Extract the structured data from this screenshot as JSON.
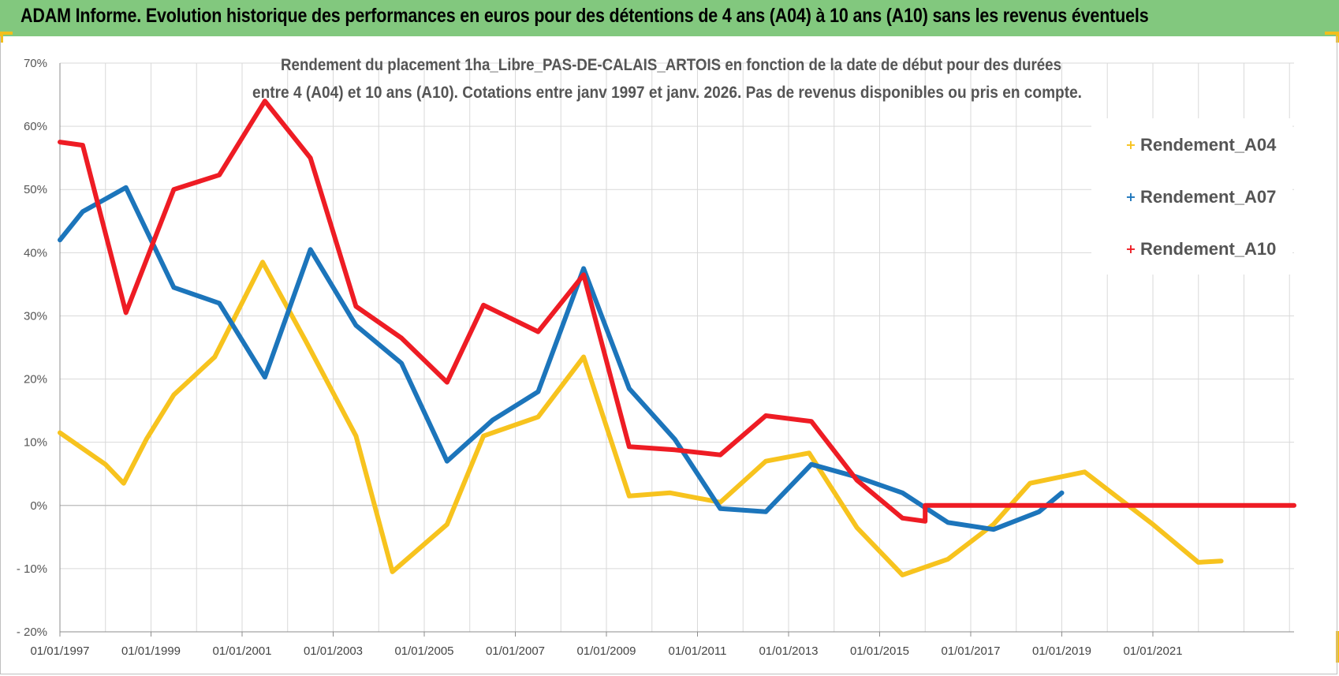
{
  "header": {
    "title": "ADAM Informe. Evolution historique des performances en euros pour des détentions de 4 ans (A04) à 10 ans (A10) sans les revenus éventuels"
  },
  "colors": {
    "banner": "#82c87e",
    "corner_accent": "#f2bf1c",
    "A04": "#f7c31e",
    "A07": "#1c75bb",
    "A10": "#ee1c24",
    "grid": "#d9d9d9"
  },
  "chart_data": {
    "type": "line",
    "subtitle_line1": "Rendement du placement 1ha_Libre_PAS-DE-CALAIS_ARTOIS en fonction de la date de début pour des durées",
    "subtitle_line2": "entre 4 (A04) et 10 ans (A10). Cotations entre janv 1997 et janv. 2026. Pas de revenus disponibles ou pris en compte.",
    "legend_position": "right",
    "grid": true,
    "x_range": [
      1997.0,
      2024.1
    ],
    "ylim": [
      -20,
      70
    ],
    "y_ticks": [
      {
        "value": 70,
        "label": "70%"
      },
      {
        "value": 60,
        "label": "60%"
      },
      {
        "value": 50,
        "label": "50%"
      },
      {
        "value": 40,
        "label": "40%"
      },
      {
        "value": 30,
        "label": "30%"
      },
      {
        "value": 20,
        "label": "20%"
      },
      {
        "value": 10,
        "label": "10%"
      },
      {
        "value": 0,
        "label": "0%"
      },
      {
        "value": -10,
        "label": "- 10%"
      },
      {
        "value": -20,
        "label": "- 20%"
      }
    ],
    "x_ticks": [
      {
        "value": 1997,
        "label": "01/01/1997"
      },
      {
        "value": 1999,
        "label": "01/01/1999"
      },
      {
        "value": 2001,
        "label": "01/01/2001"
      },
      {
        "value": 2003,
        "label": "01/01/2003"
      },
      {
        "value": 2005,
        "label": "01/01/2005"
      },
      {
        "value": 2007,
        "label": "01/01/2007"
      },
      {
        "value": 2009,
        "label": "01/01/2009"
      },
      {
        "value": 2011,
        "label": "01/01/2011"
      },
      {
        "value": 2013,
        "label": "01/01/2013"
      },
      {
        "value": 2015,
        "label": "01/01/2015"
      },
      {
        "value": 2017,
        "label": "01/01/2017"
      },
      {
        "value": 2019,
        "label": "01/01/2019"
      },
      {
        "value": 2021,
        "label": "01/01/2021"
      }
    ],
    "series": [
      {
        "name": "Rendement_A04",
        "color": "#f7c31e",
        "points": [
          [
            1997.0,
            11.5
          ],
          [
            1998.0,
            6.5
          ],
          [
            1998.4,
            3.5
          ],
          [
            1998.9,
            10.5
          ],
          [
            1999.5,
            17.5
          ],
          [
            2000.4,
            23.5
          ],
          [
            2001.45,
            38.5
          ],
          [
            2002.4,
            26
          ],
          [
            2003.5,
            11
          ],
          [
            2004.3,
            -10.5
          ],
          [
            2005.5,
            -3
          ],
          [
            2006.3,
            11
          ],
          [
            2007.5,
            14
          ],
          [
            2008.5,
            23.5
          ],
          [
            2009.5,
            1.5
          ],
          [
            2010.4,
            2
          ],
          [
            2011.5,
            0.5
          ],
          [
            2012.5,
            7
          ],
          [
            2013.45,
            8.3
          ],
          [
            2014.5,
            -3.5
          ],
          [
            2015.5,
            -11
          ],
          [
            2016.5,
            -8.5
          ],
          [
            2017.5,
            -3
          ],
          [
            2018.3,
            3.5
          ],
          [
            2019.5,
            5.3
          ],
          [
            2021.0,
            -3
          ],
          [
            2022.0,
            -9
          ],
          [
            2022.5,
            -8.8
          ]
        ]
      },
      {
        "name": "Rendement_A07",
        "color": "#1c75bb",
        "points": [
          [
            1997.0,
            42
          ],
          [
            1997.5,
            46.5
          ],
          [
            1998.45,
            50.3
          ],
          [
            1999.5,
            34.5
          ],
          [
            2000.5,
            32
          ],
          [
            2001.5,
            20.3
          ],
          [
            2002.5,
            40.5
          ],
          [
            2003.5,
            28.5
          ],
          [
            2004.5,
            22.5
          ],
          [
            2005.5,
            7
          ],
          [
            2006.5,
            13.5
          ],
          [
            2007.5,
            18
          ],
          [
            2008.5,
            37.5
          ],
          [
            2009.5,
            18.5
          ],
          [
            2010.5,
            10.5
          ],
          [
            2011.5,
            -0.5
          ],
          [
            2012.5,
            -1
          ],
          [
            2013.5,
            6.5
          ],
          [
            2014.5,
            4.5
          ],
          [
            2015.5,
            2
          ],
          [
            2016.5,
            -2.7
          ],
          [
            2017.5,
            -3.8
          ],
          [
            2018.5,
            -1
          ],
          [
            2019.0,
            2
          ]
        ]
      },
      {
        "name": "Rendement_A10",
        "color": "#ee1c24",
        "points": [
          [
            1997.0,
            57.5
          ],
          [
            1997.5,
            57
          ],
          [
            1998.45,
            30.5
          ],
          [
            1999.5,
            50
          ],
          [
            2000.5,
            52.3
          ],
          [
            2001.5,
            64
          ],
          [
            2002.5,
            55
          ],
          [
            2003.5,
            31.5
          ],
          [
            2004.5,
            26.5
          ],
          [
            2005.5,
            19.5
          ],
          [
            2006.3,
            31.7
          ],
          [
            2007.5,
            27.5
          ],
          [
            2008.5,
            36.5
          ],
          [
            2009.5,
            9.3
          ],
          [
            2010.5,
            8.8
          ],
          [
            2011.5,
            8
          ],
          [
            2012.5,
            14.2
          ],
          [
            2013.5,
            13.3
          ],
          [
            2014.5,
            4
          ],
          [
            2015.5,
            -2
          ],
          [
            2016.0,
            -2.5
          ],
          [
            2016.0,
            0
          ],
          [
            2024.1,
            0
          ]
        ]
      }
    ]
  }
}
